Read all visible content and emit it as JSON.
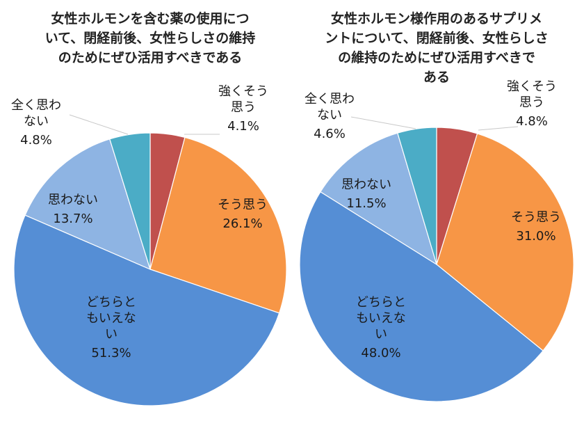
{
  "colors": {
    "強くそう思う": "#c0504d",
    "そう思う": "#f79646",
    "どちらともいえない": "#558ed5",
    "思わない": "#8eb4e3",
    "全く思わない": "#4bacc6"
  },
  "chart_data": [
    {
      "type": "pie",
      "title_lines": [
        "女性ホルモンを含む薬の使用につ",
        "いて、閉経前後、女性らしさの維持",
        "のためにぜひ活用すべきである"
      ],
      "slices": [
        {
          "label": "強くそう思う",
          "label_lines": [
            "強くそう",
            "思う"
          ],
          "value": 4.1,
          "value_text": "4.1%"
        },
        {
          "label": "そう思う",
          "label_lines": [
            "そう思う"
          ],
          "value": 26.1,
          "value_text": "26.1%"
        },
        {
          "label": "どちらともいえない",
          "label_lines": [
            "どちらと",
            "もいえな",
            "い"
          ],
          "value": 51.3,
          "value_text": "51.3%"
        },
        {
          "label": "思わない",
          "label_lines": [
            "思わない"
          ],
          "value": 13.7,
          "value_text": "13.7%"
        },
        {
          "label": "全く思わない",
          "label_lines": [
            "全く思わ",
            "ない"
          ],
          "value": 4.8,
          "value_text": "4.8%"
        }
      ]
    },
    {
      "type": "pie",
      "title_lines": [
        "女性ホルモン様作用のあるサプリメ",
        "ントについて、閉経前後、女性らしさ",
        "の維持のためにぜひ活用すべきで",
        "ある"
      ],
      "slices": [
        {
          "label": "強くそう思う",
          "label_lines": [
            "強くそう",
            "思う"
          ],
          "value": 4.8,
          "value_text": "4.8%"
        },
        {
          "label": "そう思う",
          "label_lines": [
            "そう思う"
          ],
          "value": 31.0,
          "value_text": "31.0%"
        },
        {
          "label": "どちらともいえない",
          "label_lines": [
            "どちらと",
            "もいえな",
            "い"
          ],
          "value": 48.0,
          "value_text": "48.0%"
        },
        {
          "label": "思わない",
          "label_lines": [
            "思わない"
          ],
          "value": 11.5,
          "value_text": "11.5%"
        },
        {
          "label": "全く思わない",
          "label_lines": [
            "全く思わ",
            "ない"
          ],
          "value": 4.6,
          "value_text": "4.6%"
        }
      ]
    }
  ]
}
